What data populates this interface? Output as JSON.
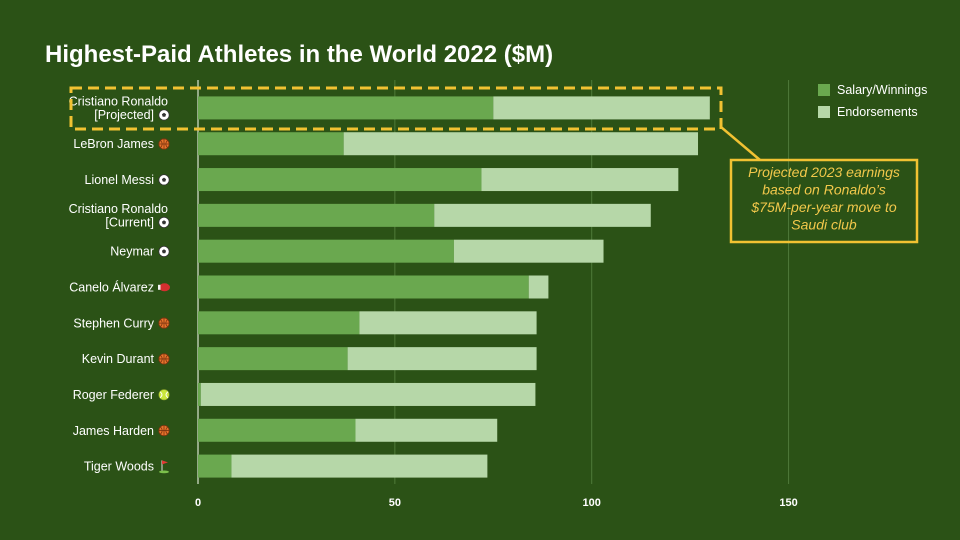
{
  "chart_data": {
    "type": "bar",
    "orientation": "horizontal",
    "stacked": true,
    "title": "Highest-Paid Athletes in the World 2022 ($M)",
    "categories": [
      {
        "lines": [
          "Cristiano Ronaldo",
          "[Projected]"
        ],
        "icon": "soccer-ball-icon"
      },
      {
        "lines": [
          "LeBron James"
        ],
        "icon": "basketball-icon"
      },
      {
        "lines": [
          "Lionel Messi"
        ],
        "icon": "soccer-ball-icon"
      },
      {
        "lines": [
          "Cristiano Ronaldo",
          "[Current]"
        ],
        "icon": "soccer-ball-icon"
      },
      {
        "lines": [
          "Neymar"
        ],
        "icon": "soccer-ball-icon"
      },
      {
        "lines": [
          "Canelo Álvarez"
        ],
        "icon": "boxing-glove-icon"
      },
      {
        "lines": [
          "Stephen Curry"
        ],
        "icon": "basketball-icon"
      },
      {
        "lines": [
          "Kevin Durant"
        ],
        "icon": "basketball-icon"
      },
      {
        "lines": [
          "Roger Federer"
        ],
        "icon": "tennis-ball-icon"
      },
      {
        "lines": [
          "James Harden"
        ],
        "icon": "basketball-icon"
      },
      {
        "lines": [
          "Tiger Woods"
        ],
        "icon": "golf-flag-icon"
      }
    ],
    "series": [
      {
        "name": "Salary/Winnings",
        "color": "#6aa84f",
        "values": [
          75,
          37,
          72,
          60,
          65,
          84,
          41,
          38,
          0.7,
          40,
          8.5
        ]
      },
      {
        "name": "Endorsements",
        "color": "#b6d7a8",
        "values": [
          55,
          90,
          50,
          55,
          38,
          5,
          45,
          48,
          85,
          36,
          65
        ]
      }
    ],
    "xlim": [
      0,
      175
    ],
    "xticks": [
      0,
      50,
      100,
      150
    ],
    "grid": true,
    "legend_position": "top-right",
    "annotation": {
      "text_lines": [
        "Projected 2023 earnings",
        "based on Ronaldo’s",
        "$75M-per-year move to",
        "Saudi club"
      ],
      "target_category_index": 0,
      "color": "#f1c232"
    },
    "colors": {
      "background": "#2b5216",
      "gridline": "#4f7a3a"
    }
  }
}
